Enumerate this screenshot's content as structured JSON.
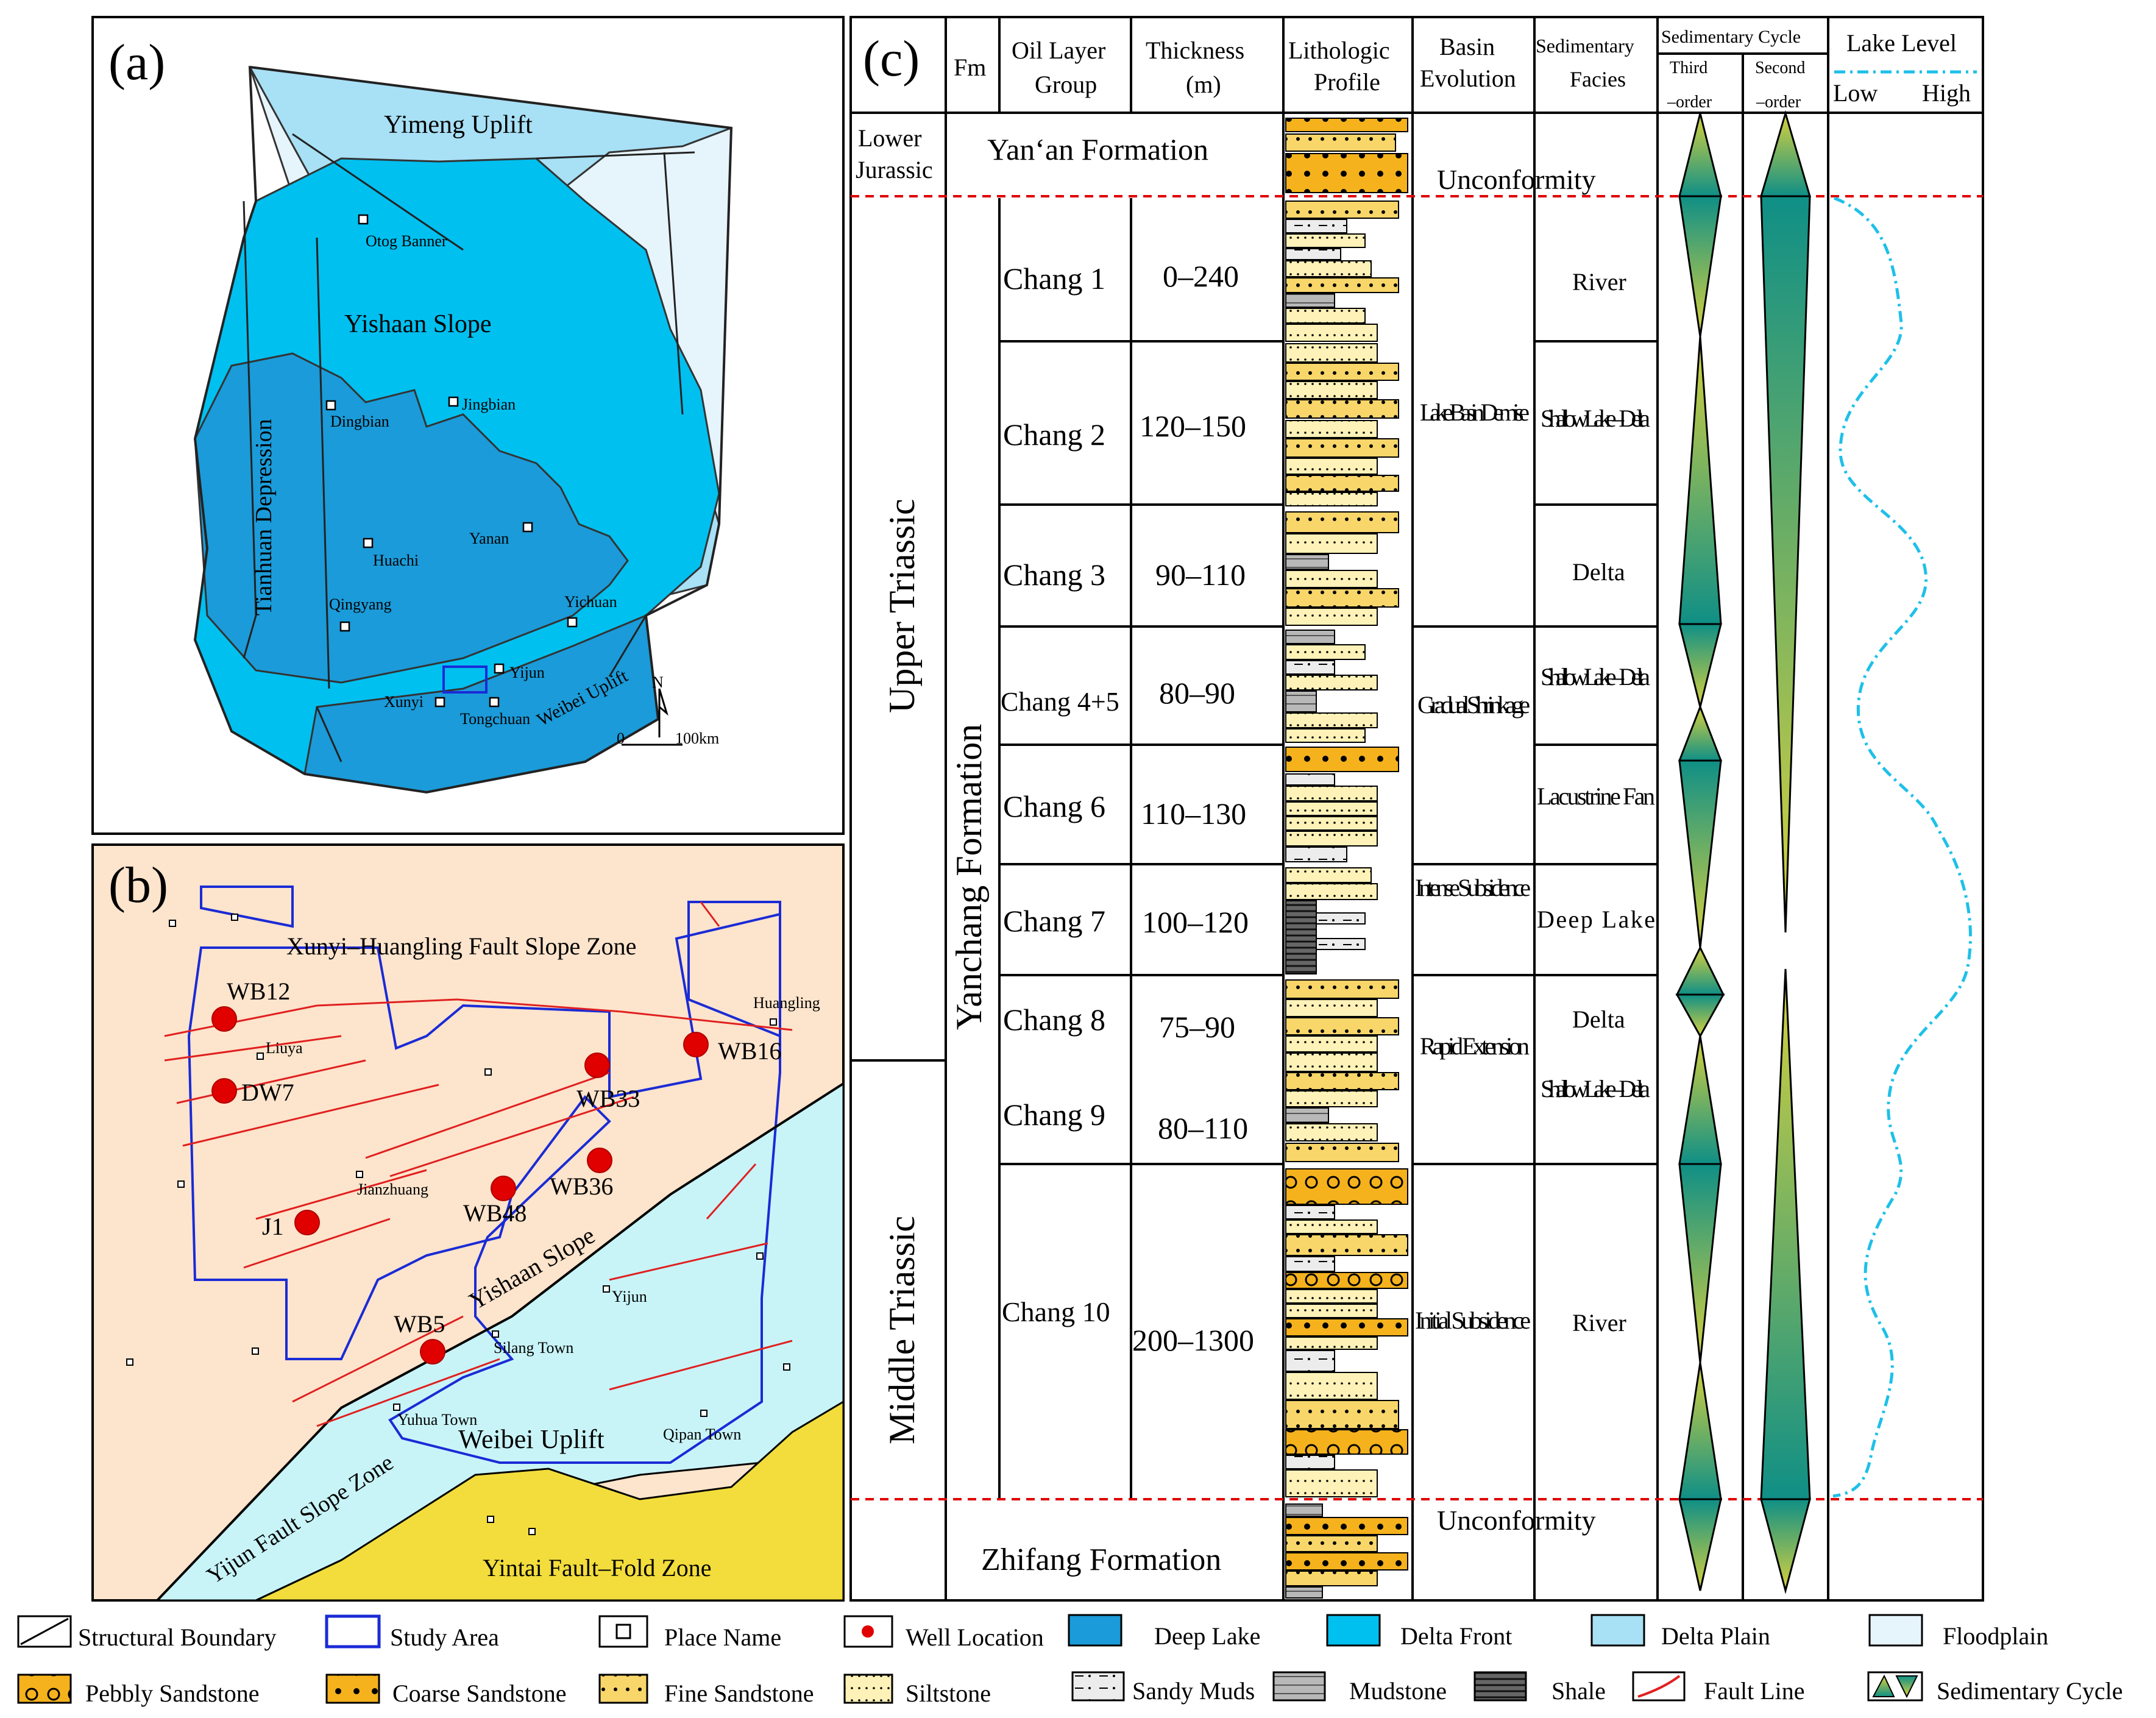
{
  "panel_a": {
    "label": "(a)",
    "regions": [
      "Yimeng Uplift",
      "Yishaan Slope",
      "Tianhuan Depression",
      "Weibei Uplift"
    ],
    "places": [
      "Otog Banner",
      "Dingbian",
      "Jingbian",
      "Huachi",
      "Yanan",
      "Qingyang",
      "Yichuan",
      "Yijun",
      "Xunyi",
      "Tongchuan"
    ],
    "north": "N",
    "scale_zero": "0",
    "scale_label": "100km"
  },
  "panel_b": {
    "label": "(b)",
    "zones": [
      "Xunyi–Huangling Fault Slope Zone",
      "Yishaan Slope",
      "Weibei Uplift",
      "Yijun Fault Slope Zone",
      "Yintai Fault–Fold Zone"
    ],
    "places": [
      "Huangling",
      "Liuya",
      "Jianzhuang",
      "Yijun",
      "Silang Town",
      "Yuhua Town",
      "Qipan Town"
    ],
    "wells": [
      "WB12",
      "DW7",
      "WB33",
      "WB16",
      "WB36",
      "WB48",
      "J1",
      "WB5"
    ]
  },
  "panel_c": {
    "label": "(c)",
    "headers": {
      "fm": "Fm",
      "oil_layer_1": "Oil Layer",
      "oil_layer_2": "Group",
      "thickness_1": "Thickness",
      "thickness_2": "(m)",
      "litho_1": "Lithologic",
      "litho_2": "Profile",
      "basin_1": "Basin",
      "basin_2": "Evolution",
      "facies_1": "Sedimentary",
      "facies_2": "Facies",
      "cycle": "Sedimentary Cycle",
      "third_1": "Third",
      "third_2": "–order",
      "second_1": "Second",
      "second_2": "–order",
      "lake_level": "Lake Level",
      "low": "Low",
      "high": "High"
    },
    "lower_jurassic_1": "Lower",
    "lower_jurassic_2": "Jurassic",
    "yanan_formation": "Yan‘an Formation",
    "upper_triassic": "Upper Triassic",
    "middle_triassic": "Middle Triassic",
    "yanchang_formation": "Yanchang Formation",
    "zhifang_formation": "Zhifang Formation",
    "unconformity": "Unconformity",
    "oil_layers": [
      {
        "name": "Chang 1",
        "thickness": "0–240"
      },
      {
        "name": "Chang 2",
        "thickness": "120–150"
      },
      {
        "name": "Chang 3",
        "thickness": "90–110"
      },
      {
        "name": "Chang 4+5",
        "thickness": "80–90"
      },
      {
        "name": "Chang 6",
        "thickness": "110–130"
      },
      {
        "name": "Chang 7",
        "thickness": "100–120"
      },
      {
        "name": "Chang 8",
        "thickness": "75–90"
      },
      {
        "name": "Chang 9",
        "thickness": "80–110"
      },
      {
        "name": "Chang 10",
        "thickness": "200–1300"
      }
    ],
    "basin_evolution": [
      "Lake Basin Demise",
      "Gradual Shrinkage",
      "Intense Subsidence",
      "Rapid Extension",
      "Initial Subsidence"
    ],
    "sedimentary_facies": [
      "River",
      "Shallow Lake –Delta",
      "Delta",
      "Shallow Lake –Delta",
      "Lacustrine Fan",
      "Deep Lake",
      "Delta",
      "Shallow Lake –Delta",
      "River"
    ]
  },
  "legend": [
    "Structural Boundary",
    "Study Area",
    "Place Name",
    "Well Location",
    "Deep Lake",
    "Delta Front",
    "Delta Plain",
    "Floodplain",
    "Pebbly Sandstone",
    "Coarse Sandstone",
    "Fine Sandstone",
    "Siltstone",
    "Sandy Muds",
    "Mudstone",
    "Shale",
    "Fault Line",
    "Sedimentary Cycle"
  ],
  "colors": {
    "deep_lake": "#1b9bd9",
    "delta_front": "#00c0f0",
    "delta_plain": "#a8e0f5",
    "floodplain": "#e6f4fb",
    "uplift_b": "#c8f4f8",
    "slope_b": "#fde4cc",
    "yintai": "#f2dd3c",
    "coarse": "#f5b21c",
    "fine": "#f8d66a",
    "silt": "#fff2b8",
    "teal": "#0f8f86",
    "olive": "#c8c23a",
    "lake_line": "#1ec0e8",
    "fault": "#e02020",
    "well": "#e00000",
    "study": "#1a2bd6",
    "unconformity": "#e00000"
  }
}
